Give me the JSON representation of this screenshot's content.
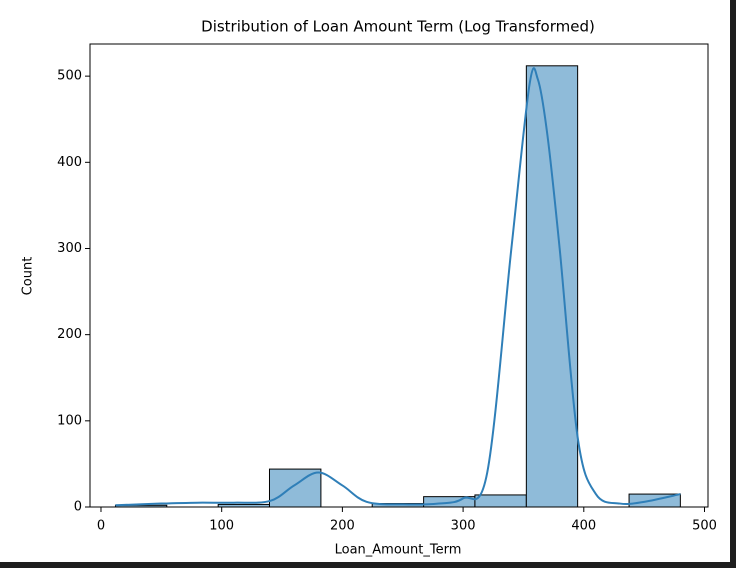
{
  "chart_data": {
    "type": "histogram",
    "title": "Distribution of Loan Amount Term (Log Transformed)",
    "xlabel": "Loan_Amount_Term",
    "ylabel": "Count",
    "bins": [
      12,
      54.5,
      97.1,
      139.6,
      182.2,
      224.7,
      267.3,
      309.8,
      352.4,
      394.9,
      437.5,
      480
    ],
    "values": [
      2,
      0,
      3,
      44,
      0,
      4,
      12,
      14,
      512,
      0,
      15
    ],
    "color": "#8fbbd9",
    "edgecolor": "#000000",
    "kde": {
      "color": "#2f7fb8",
      "x": [
        12,
        50,
        80,
        110,
        140,
        160,
        180,
        200,
        220,
        250,
        280,
        300,
        320,
        340,
        355,
        362,
        370,
        380,
        395,
        410,
        430,
        450,
        480
      ],
      "values": [
        2,
        4,
        5,
        5,
        7,
        25,
        40,
        25,
        6,
        3,
        4,
        10,
        40,
        300,
        490,
        496,
        430,
        300,
        80,
        15,
        4,
        6,
        15
      ]
    },
    "xlim": [
      -9.1,
      502.9
    ],
    "xticks": [
      0,
      100,
      200,
      300,
      400,
      500
    ],
    "ylim": [
      0,
      537.3
    ],
    "yticks": [
      0,
      100,
      200,
      300,
      400,
      500
    ]
  }
}
